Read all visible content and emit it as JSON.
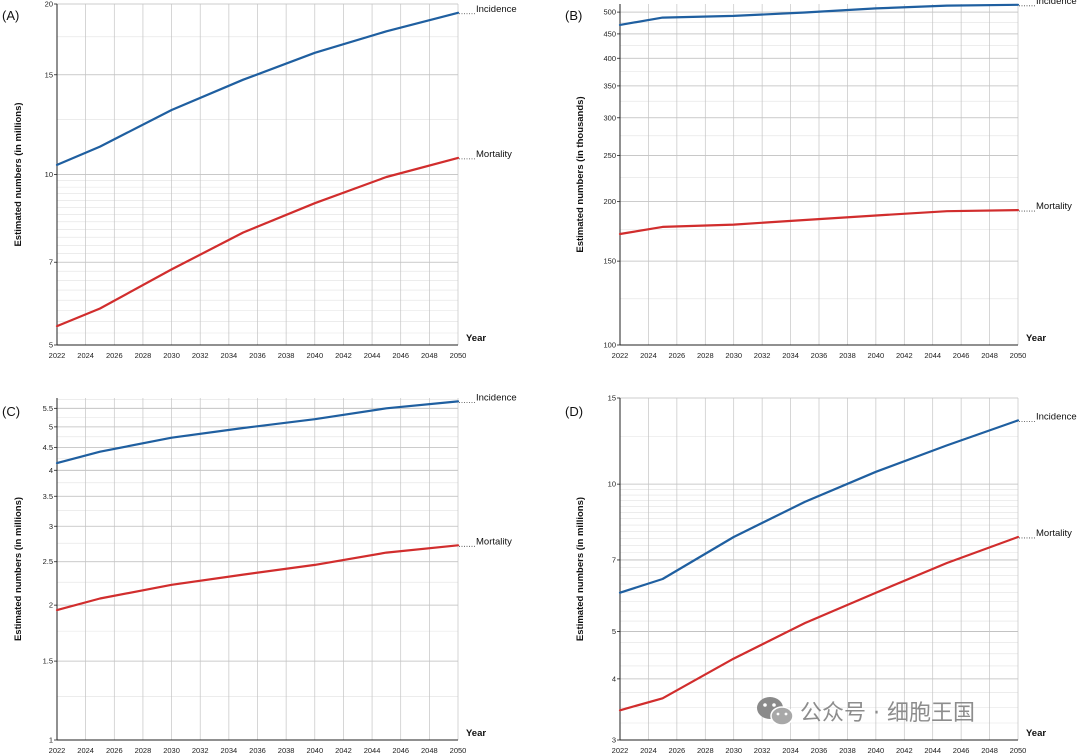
{
  "watermark": {
    "text": "公众号 · 细胞王国"
  },
  "chart_data": [
    {
      "panel": "(A)",
      "type": "line",
      "scale": "log",
      "ylabel": "Estimated numbers (in millions)",
      "xlabel": "Year",
      "ylim": [
        5,
        20
      ],
      "yticks": [
        5,
        7,
        10,
        15,
        20
      ],
      "xticks": [
        2022,
        2024,
        2026,
        2028,
        2030,
        2032,
        2034,
        2036,
        2038,
        2040,
        2042,
        2044,
        2046,
        2048,
        2050
      ],
      "grid": true,
      "series": [
        {
          "name": "Incidence",
          "color": "#1f5fa0",
          "x": [
            2022,
            2025,
            2030,
            2035,
            2040,
            2045,
            2050
          ],
          "y": [
            10.4,
            11.2,
            13.0,
            14.7,
            16.4,
            17.9,
            19.3
          ]
        },
        {
          "name": "Mortality",
          "color": "#d12d2d",
          "x": [
            2022,
            2025,
            2030,
            2035,
            2040,
            2045,
            2050
          ],
          "y": [
            5.4,
            5.8,
            6.8,
            7.9,
            8.9,
            9.9,
            10.7
          ]
        }
      ]
    },
    {
      "panel": "(B)",
      "type": "line",
      "scale": "log",
      "ylabel": "Estimated numbers (in thousands)",
      "xlabel": "Year",
      "ylim": [
        100,
        520
      ],
      "yticks": [
        100,
        150,
        200,
        250,
        300,
        350,
        400,
        450,
        500
      ],
      "xticks": [
        2022,
        2024,
        2026,
        2028,
        2030,
        2032,
        2034,
        2036,
        2038,
        2040,
        2042,
        2044,
        2046,
        2048,
        2050
      ],
      "grid": true,
      "series": [
        {
          "name": "Incidence",
          "color": "#1f5fa0",
          "x": [
            2022,
            2025,
            2030,
            2035,
            2040,
            2045,
            2050
          ],
          "y": [
            470,
            487,
            491,
            499,
            509,
            516,
            518
          ]
        },
        {
          "name": "Mortality",
          "color": "#d12d2d",
          "x": [
            2022,
            2025,
            2030,
            2035,
            2040,
            2045,
            2050
          ],
          "y": [
            171,
            177,
            179,
            183,
            187,
            191,
            192
          ]
        }
      ]
    },
    {
      "panel": "(C)",
      "type": "line",
      "scale": "log",
      "ylabel": "Estimated numbers (in millions)",
      "xlabel": "Year",
      "ylim": [
        1,
        5.8
      ],
      "yticks": [
        1,
        1.5,
        2,
        2.5,
        3,
        3.5,
        4,
        4.5,
        5,
        5.5
      ],
      "xticks": [
        2022,
        2024,
        2026,
        2028,
        2030,
        2032,
        2034,
        2036,
        2038,
        2040,
        2042,
        2044,
        2046,
        2048,
        2050
      ],
      "grid": true,
      "series": [
        {
          "name": "Incidence",
          "color": "#1f5fa0",
          "x": [
            2022,
            2025,
            2030,
            2035,
            2040,
            2045,
            2050
          ],
          "y": [
            4.15,
            4.4,
            4.73,
            4.97,
            5.2,
            5.5,
            5.7
          ]
        },
        {
          "name": "Mortality",
          "color": "#d12d2d",
          "x": [
            2022,
            2025,
            2030,
            2035,
            2040,
            2045,
            2050
          ],
          "y": [
            1.95,
            2.07,
            2.22,
            2.34,
            2.46,
            2.62,
            2.72
          ]
        }
      ]
    },
    {
      "panel": "(D)",
      "type": "line",
      "scale": "log",
      "ylabel": "Estimated numbers (in millions)",
      "xlabel": "Year",
      "ylim": [
        3,
        15
      ],
      "yticks": [
        3,
        4,
        5,
        7,
        10,
        15
      ],
      "xticks": [
        2022,
        2024,
        2026,
        2028,
        2030,
        2032,
        2034,
        2036,
        2038,
        2040,
        2042,
        2044,
        2046,
        2048,
        2050
      ],
      "grid": true,
      "series": [
        {
          "name": "Incidence",
          "color": "#1f5fa0",
          "x": [
            2022,
            2025,
            2030,
            2035,
            2040,
            2045,
            2050
          ],
          "y": [
            6.0,
            6.4,
            7.8,
            9.2,
            10.6,
            12.0,
            13.5
          ]
        },
        {
          "name": "Mortality",
          "color": "#d12d2d",
          "x": [
            2022,
            2025,
            2030,
            2035,
            2040,
            2045,
            2050
          ],
          "y": [
            3.45,
            3.65,
            4.4,
            5.2,
            6.0,
            6.9,
            7.8
          ]
        }
      ]
    }
  ]
}
